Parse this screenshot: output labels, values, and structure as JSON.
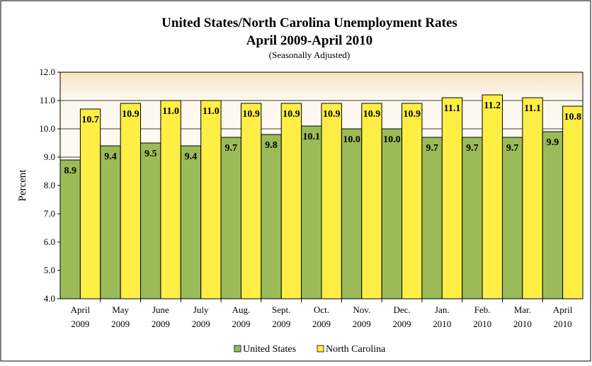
{
  "chart_data": {
    "type": "bar",
    "title": "United States/North Carolina Unemployment Rates",
    "subtitle": "April 2009-April 2010",
    "note": "(Seasonally Adjusted)",
    "ylabel": "Percent",
    "xlabel": "",
    "ylim": [
      4.0,
      12.0
    ],
    "yticks": [
      "4.0",
      "5.0",
      "6.0",
      "7.0",
      "8.0",
      "9.0",
      "10.0",
      "11.0",
      "12.0"
    ],
    "grid": true,
    "legend_position": "bottom",
    "categories": [
      [
        "April",
        "2009"
      ],
      [
        "May",
        "2009"
      ],
      [
        "June",
        "2009"
      ],
      [
        "July",
        "2009"
      ],
      [
        "Aug.",
        "2009"
      ],
      [
        "Sept.",
        "2009"
      ],
      [
        "Oct.",
        "2009"
      ],
      [
        "Nov.",
        "2009"
      ],
      [
        "Dec.",
        "2009"
      ],
      [
        "Jan.",
        "2010"
      ],
      [
        "Feb.",
        "2010"
      ],
      [
        "Mar.",
        "2010"
      ],
      [
        "April",
        "2010"
      ]
    ],
    "series": [
      {
        "name": "United States",
        "color": "#9bbb59",
        "values": [
          8.9,
          9.4,
          9.5,
          9.4,
          9.7,
          9.8,
          10.1,
          10.0,
          10.0,
          9.7,
          9.7,
          9.7,
          9.9
        ],
        "labels": [
          "8.9",
          "9.4",
          "9.5",
          "9.4",
          "9.7",
          "9.8",
          "10.1",
          "10.0",
          "10.0",
          "9.7",
          "9.7",
          "9.7",
          "9.9"
        ]
      },
      {
        "name": "North Carolina",
        "color": "#ffee44",
        "values": [
          10.7,
          10.9,
          11.0,
          11.0,
          10.9,
          10.9,
          10.9,
          10.9,
          10.9,
          11.1,
          11.2,
          11.1,
          10.8
        ],
        "labels": [
          "10.7",
          "10.9",
          "11.0",
          "11.0",
          "10.9",
          "10.9",
          "10.9",
          "10.9",
          "10.9",
          "11.1",
          "11.2",
          "11.1",
          "10.8"
        ]
      }
    ]
  }
}
